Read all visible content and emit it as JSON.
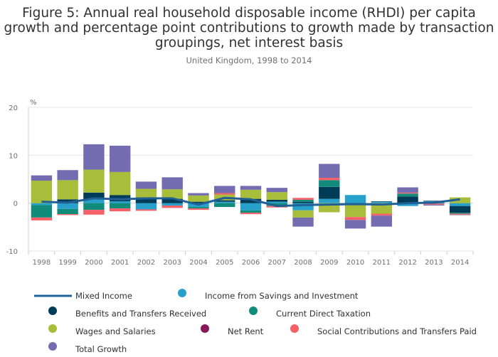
{
  "chart_data": {
    "type": "bar",
    "stacked": true,
    "title": "Figure 5: Annual real household disposable income (RHDI) per capita growth and percentage point contributions to growth made by transaction groupings, net interest basis",
    "subtitle": "United Kingdom, 1998 to 2014",
    "ylabel": "%",
    "ylim": [
      -10,
      20
    ],
    "yticks": [
      "20",
      "10",
      "0",
      "-10"
    ],
    "categories": [
      "1998",
      "1999",
      "2000",
      "2001",
      "2002",
      "2003",
      "2004",
      "2005",
      "2006",
      "2007",
      "2008",
      "2009",
      "2010",
      "2011",
      "2012",
      "2013",
      "2014"
    ],
    "series": [
      {
        "name": "Income from Savings and Investment",
        "color": "#27a0cc",
        "values": [
          -0.4,
          -1.2,
          0.9,
          0.4,
          -1.3,
          -0.5,
          -0.8,
          0.3,
          -1.5,
          0.3,
          -1.5,
          0.9,
          1.7,
          0.3,
          -0.6,
          0.4,
          -0.6
        ]
      },
      {
        "name": "Benefits and Transfers Received",
        "color": "#003c57",
        "values": [
          0,
          0.8,
          1.3,
          1.3,
          1.2,
          0.9,
          0.3,
          0.3,
          0.9,
          0.4,
          0.3,
          2.5,
          -0.2,
          0.1,
          1.4,
          0.1,
          -1.4
        ]
      },
      {
        "name": "Current Direct Taxation",
        "color": "#118c7b",
        "values": [
          -2.6,
          -1.1,
          -1.4,
          -1.1,
          0,
          0,
          -0.3,
          -0.8,
          -0.5,
          -0.6,
          0.4,
          1.4,
          0,
          0,
          0.6,
          -0.1,
          -0.2
        ]
      },
      {
        "name": "Wages and Salaries",
        "color": "#a8bd3a",
        "values": [
          4.7,
          4.0,
          4.8,
          4.8,
          1.8,
          2.0,
          1.3,
          1.2,
          1.9,
          1.6,
          -1.5,
          -1.9,
          -2.7,
          -2.2,
          0,
          0,
          1.2
        ]
      },
      {
        "name": "Net Rent",
        "color": "#871a5b",
        "values": [
          0,
          0,
          0,
          0,
          0,
          0,
          0,
          0,
          0,
          0,
          0,
          0,
          0,
          0,
          0,
          0,
          0
        ]
      },
      {
        "name": "Social Contributions and Transfers Paid",
        "color": "#f66068",
        "values": [
          -0.6,
          -0.2,
          -1.0,
          -0.6,
          -0.3,
          -0.5,
          -0.3,
          0.3,
          -0.3,
          -0.3,
          0.4,
          0.5,
          -0.6,
          -0.4,
          0.2,
          -0.2,
          -0.2
        ]
      },
      {
        "name": "Total Growth",
        "color": "#746cb1",
        "values": [
          1.1,
          2.1,
          5.3,
          5.5,
          1.5,
          2.5,
          0.5,
          1.5,
          0.8,
          0.9,
          -1.9,
          2.9,
          -1.8,
          -2.3,
          1.1,
          -0.2,
          -0.1
        ]
      }
    ],
    "line": {
      "name": "Mixed Income",
      "color": "#206095",
      "values": [
        0.3,
        0.1,
        1.0,
        0.8,
        1.0,
        1.0,
        -0.3,
        1.1,
        0.8,
        -0.6,
        -0.4,
        -0.3,
        -0.2,
        -0.3,
        0,
        0.1,
        0.8
      ]
    },
    "legend": {
      "position": "bottom",
      "items": [
        {
          "label": "Mixed Income",
          "kind": "line",
          "color": "#206095"
        },
        {
          "label": "Income from Savings and Investment",
          "kind": "dot",
          "color": "#27a0cc"
        },
        {
          "label": "Benefits and Transfers Received",
          "kind": "dot",
          "color": "#003c57"
        },
        {
          "label": "Current Direct Taxation",
          "kind": "dot",
          "color": "#118c7b"
        },
        {
          "label": "Wages and Salaries",
          "kind": "dot",
          "color": "#a8bd3a"
        },
        {
          "label": "Net Rent",
          "kind": "dot",
          "color": "#871a5b"
        },
        {
          "label": "Social Contributions and Transfers Paid",
          "kind": "dot",
          "color": "#f66068"
        },
        {
          "label": "Total Growth",
          "kind": "dot",
          "color": "#746cb1"
        }
      ]
    }
  }
}
